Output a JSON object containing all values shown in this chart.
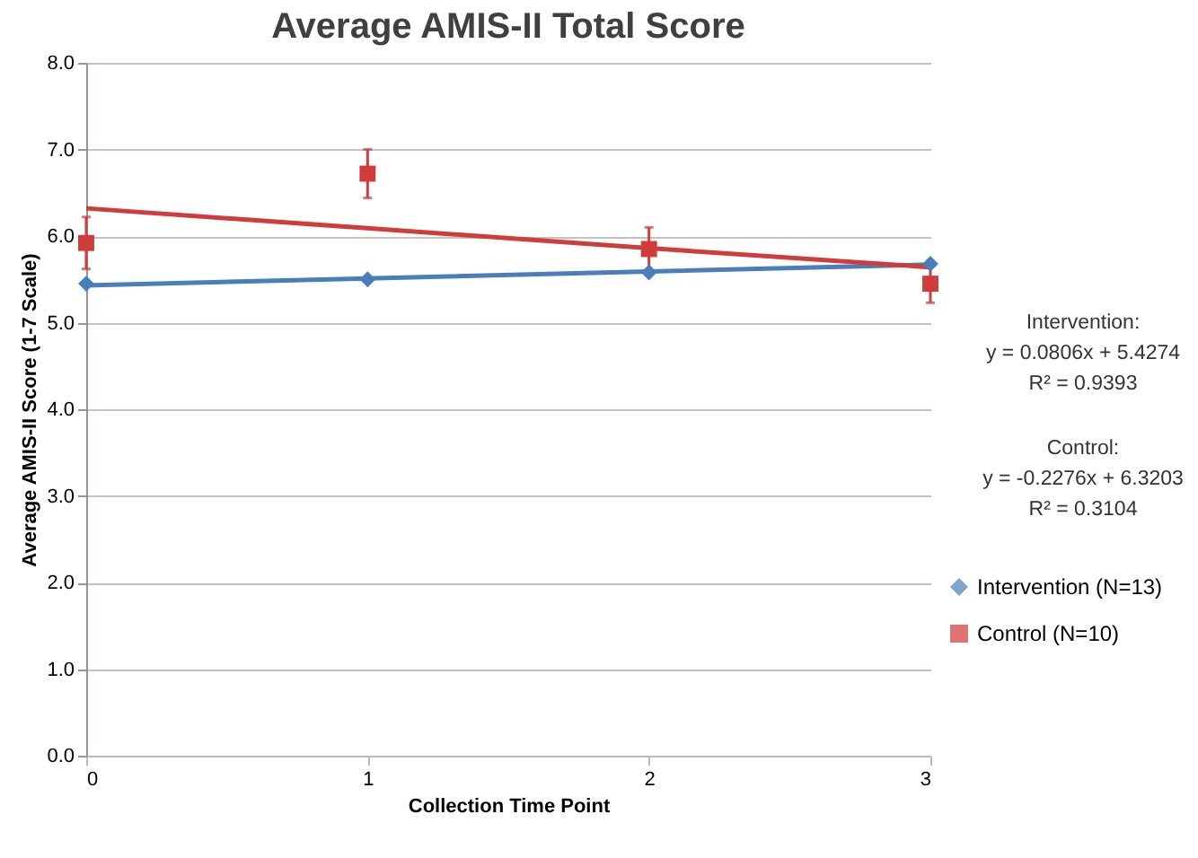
{
  "chart_data": {
    "type": "scatter",
    "title": "Average AMIS-II Total Score",
    "xlabel": "Collection Time Point",
    "ylabel": "Average AMIS-II Score (1-7 Scale)",
    "x": [
      0,
      1,
      2,
      3
    ],
    "series": [
      {
        "name": "Intervention (N=13)",
        "color": "#4a7ebb",
        "values": [
          5.45,
          5.5,
          5.58,
          5.68
        ],
        "marker": "diamond"
      },
      {
        "name": "Control (N=10)",
        "color": "#d03b3b",
        "values": [
          5.92,
          6.72,
          5.85,
          5.45
        ],
        "marker": "square",
        "errors": [
          0.3,
          0.28,
          0.25,
          0.22
        ]
      },
      {
        "type": "line",
        "color": "#4a7ebb",
        "values": [
          5.43,
          5.51,
          5.59,
          5.67
        ],
        "line_style": "solid"
      },
      {
        "type": "line",
        "color": "#d03b3b",
        "values": [
          6.32,
          6.09,
          5.86,
          5.64
        ],
        "line_style": "solid"
      }
    ],
    "xlim": [
      0,
      3
    ],
    "xticks": [
      0,
      1,
      2,
      3
    ],
    "ylim": [
      0,
      8
    ],
    "yticks": [
      {
        "value": 0,
        "label": "0.0"
      },
      {
        "value": 1,
        "label": "1.0"
      },
      {
        "value": 2,
        "label": "2.0"
      },
      {
        "value": 3,
        "label": "3.0"
      },
      {
        "value": 4,
        "label": "4.0"
      },
      {
        "value": 5,
        "label": "5.0"
      },
      {
        "value": 6,
        "label": "6.0"
      },
      {
        "value": 7,
        "label": "7.0"
      },
      {
        "value": 8,
        "label": "8.0"
      }
    ],
    "grid": "y",
    "legend": "right",
    "annotations": [
      "Intervention:",
      "y = 0.0806x + 5.4274",
      "R² = 0.9393",
      "Control:",
      "y = -0.2276x + 6.3203",
      "R² = 0.3104"
    ]
  }
}
